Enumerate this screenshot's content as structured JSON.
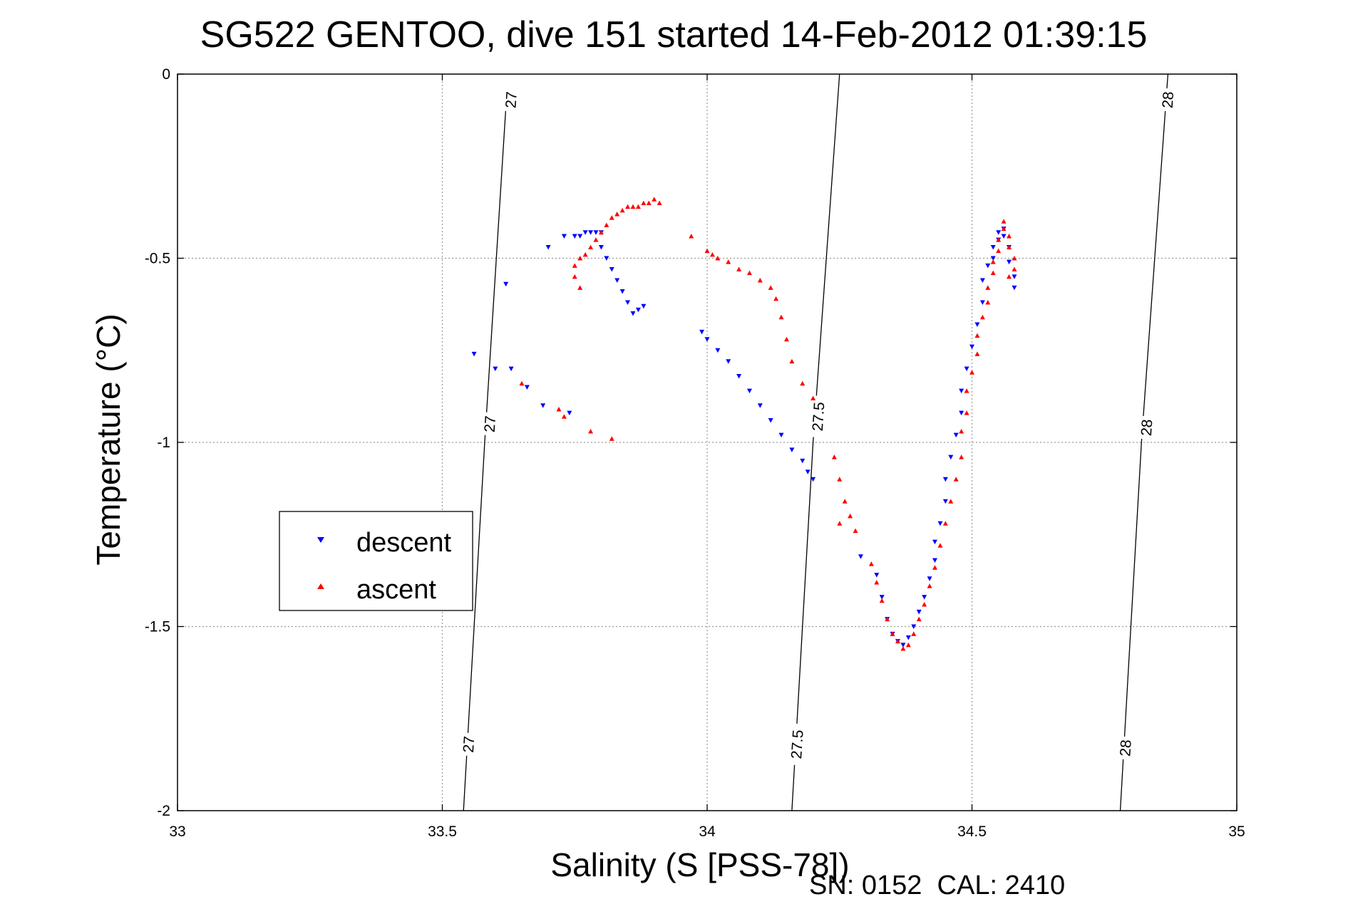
{
  "chart_data": {
    "type": "scatter",
    "title": "SG522 GENTOO, dive 151 started 14-Feb-2012 01:39:15",
    "xlabel": "Salinity (S [PSS-78])",
    "ylabel": "Temperature (°C)",
    "xlim": [
      33,
      35
    ],
    "ylim": [
      -2,
      0
    ],
    "x_ticks": [
      33,
      33.5,
      34,
      34.5,
      35
    ],
    "x_tick_labels": [
      "33",
      "33.5",
      "34",
      "34.5",
      "35"
    ],
    "y_ticks": [
      0,
      -0.5,
      -1,
      -1.5,
      -2
    ],
    "y_tick_labels": [
      "0",
      "-0.5",
      "-1",
      "-1.5",
      "-2"
    ],
    "grid": true,
    "legend_position": "lower-left",
    "density_contours": [
      {
        "label": "27",
        "points": [
          [
            33.54,
            -2
          ],
          [
            33.58,
            -1.0
          ],
          [
            33.62,
            -0.09
          ]
        ],
        "label_positions": [
          [
            33.55,
            -1.82
          ],
          [
            33.59,
            -0.95
          ],
          [
            33.63,
            -0.07
          ]
        ]
      },
      {
        "label": "27.5",
        "points": [
          [
            34.16,
            -2
          ],
          [
            34.2,
            -1.0
          ],
          [
            34.25,
            0
          ]
        ],
        "label_positions": [
          [
            34.17,
            -1.82
          ],
          [
            34.21,
            -0.93
          ]
        ]
      },
      {
        "label": "28",
        "points": [
          [
            34.78,
            -2
          ],
          [
            34.82,
            -1.0
          ],
          [
            34.87,
            0
          ]
        ],
        "label_positions": [
          [
            34.79,
            -1.83
          ],
          [
            34.83,
            -0.96
          ],
          [
            34.87,
            -0.07
          ]
        ]
      }
    ],
    "series": [
      {
        "name": "descent",
        "color": "#0000ff",
        "marker": "triangle-down",
        "points": [
          [
            33.56,
            -0.76
          ],
          [
            33.6,
            -0.8
          ],
          [
            33.62,
            -0.57
          ],
          [
            33.63,
            -0.8
          ],
          [
            33.66,
            -0.85
          ],
          [
            33.69,
            -0.9
          ],
          [
            33.7,
            -0.47
          ],
          [
            33.73,
            -0.44
          ],
          [
            33.74,
            -0.92
          ],
          [
            33.75,
            -0.44
          ],
          [
            33.76,
            -0.44
          ],
          [
            33.77,
            -0.43
          ],
          [
            33.78,
            -0.43
          ],
          [
            33.79,
            -0.43
          ],
          [
            33.8,
            -0.43
          ],
          [
            33.8,
            -0.47
          ],
          [
            33.81,
            -0.5
          ],
          [
            33.82,
            -0.53
          ],
          [
            33.83,
            -0.56
          ],
          [
            33.84,
            -0.59
          ],
          [
            33.85,
            -0.62
          ],
          [
            33.86,
            -0.65
          ],
          [
            33.87,
            -0.64
          ],
          [
            33.88,
            -0.63
          ],
          [
            33.99,
            -0.7
          ],
          [
            34.0,
            -0.72
          ],
          [
            34.02,
            -0.75
          ],
          [
            34.04,
            -0.78
          ],
          [
            34.06,
            -0.82
          ],
          [
            34.08,
            -0.86
          ],
          [
            34.1,
            -0.9
          ],
          [
            34.12,
            -0.94
          ],
          [
            34.14,
            -0.98
          ],
          [
            34.16,
            -1.02
          ],
          [
            34.18,
            -1.05
          ],
          [
            34.19,
            -1.08
          ],
          [
            34.2,
            -1.1
          ],
          [
            34.29,
            -1.31
          ],
          [
            34.32,
            -1.36
          ],
          [
            34.33,
            -1.42
          ],
          [
            34.34,
            -1.48
          ],
          [
            34.35,
            -1.52
          ],
          [
            34.36,
            -1.54
          ],
          [
            34.37,
            -1.55
          ],
          [
            34.38,
            -1.53
          ],
          [
            34.39,
            -1.5
          ],
          [
            34.4,
            -1.46
          ],
          [
            34.41,
            -1.42
          ],
          [
            34.42,
            -1.37
          ],
          [
            34.43,
            -1.32
          ],
          [
            34.43,
            -1.27
          ],
          [
            34.44,
            -1.22
          ],
          [
            34.45,
            -1.16
          ],
          [
            34.45,
            -1.1
          ],
          [
            34.46,
            -1.04
          ],
          [
            34.47,
            -0.98
          ],
          [
            34.48,
            -0.92
          ],
          [
            34.48,
            -0.86
          ],
          [
            34.49,
            -0.8
          ],
          [
            34.5,
            -0.74
          ],
          [
            34.51,
            -0.68
          ],
          [
            34.52,
            -0.62
          ],
          [
            34.52,
            -0.56
          ],
          [
            34.53,
            -0.52
          ],
          [
            34.54,
            -0.5
          ],
          [
            34.54,
            -0.47
          ],
          [
            34.55,
            -0.45
          ],
          [
            34.55,
            -0.43
          ],
          [
            34.56,
            -0.42
          ],
          [
            34.56,
            -0.44
          ],
          [
            34.57,
            -0.47
          ],
          [
            34.57,
            -0.51
          ],
          [
            34.58,
            -0.55
          ],
          [
            34.58,
            -0.58
          ]
        ]
      },
      {
        "name": "ascent",
        "color": "#ff0000",
        "marker": "triangle-up",
        "points": [
          [
            33.65,
            -0.84
          ],
          [
            33.72,
            -0.91
          ],
          [
            33.73,
            -0.93
          ],
          [
            33.78,
            -0.97
          ],
          [
            33.82,
            -0.99
          ],
          [
            33.75,
            -0.55
          ],
          [
            33.75,
            -0.52
          ],
          [
            33.76,
            -0.5
          ],
          [
            33.76,
            -0.58
          ],
          [
            33.77,
            -0.49
          ],
          [
            33.78,
            -0.47
          ],
          [
            33.79,
            -0.45
          ],
          [
            33.8,
            -0.43
          ],
          [
            33.81,
            -0.41
          ],
          [
            33.82,
            -0.39
          ],
          [
            33.83,
            -0.38
          ],
          [
            33.84,
            -0.37
          ],
          [
            33.85,
            -0.36
          ],
          [
            33.86,
            -0.36
          ],
          [
            33.87,
            -0.36
          ],
          [
            33.88,
            -0.35
          ],
          [
            33.89,
            -0.35
          ],
          [
            33.9,
            -0.34
          ],
          [
            33.91,
            -0.35
          ],
          [
            33.97,
            -0.44
          ],
          [
            34.0,
            -0.48
          ],
          [
            34.01,
            -0.49
          ],
          [
            34.02,
            -0.5
          ],
          [
            34.04,
            -0.51
          ],
          [
            34.06,
            -0.53
          ],
          [
            34.08,
            -0.54
          ],
          [
            34.1,
            -0.56
          ],
          [
            34.12,
            -0.58
          ],
          [
            34.13,
            -0.61
          ],
          [
            34.14,
            -0.66
          ],
          [
            34.15,
            -0.72
          ],
          [
            34.16,
            -0.78
          ],
          [
            34.18,
            -0.84
          ],
          [
            34.2,
            -0.88
          ],
          [
            34.24,
            -1.04
          ],
          [
            34.25,
            -1.1
          ],
          [
            34.26,
            -1.16
          ],
          [
            34.27,
            -1.2
          ],
          [
            34.28,
            -1.24
          ],
          [
            34.25,
            -1.22
          ],
          [
            34.31,
            -1.33
          ],
          [
            34.32,
            -1.38
          ],
          [
            34.33,
            -1.43
          ],
          [
            34.34,
            -1.48
          ],
          [
            34.35,
            -1.52
          ],
          [
            34.36,
            -1.54
          ],
          [
            34.37,
            -1.56
          ],
          [
            34.38,
            -1.55
          ],
          [
            34.39,
            -1.52
          ],
          [
            34.4,
            -1.48
          ],
          [
            34.41,
            -1.44
          ],
          [
            34.42,
            -1.39
          ],
          [
            34.43,
            -1.34
          ],
          [
            34.44,
            -1.28
          ],
          [
            34.45,
            -1.22
          ],
          [
            34.46,
            -1.16
          ],
          [
            34.47,
            -1.1
          ],
          [
            34.48,
            -1.04
          ],
          [
            34.48,
            -0.97
          ],
          [
            34.49,
            -0.92
          ],
          [
            34.49,
            -0.86
          ],
          [
            34.5,
            -0.81
          ],
          [
            34.51,
            -0.76
          ],
          [
            34.51,
            -0.71
          ],
          [
            34.52,
            -0.66
          ],
          [
            34.53,
            -0.62
          ],
          [
            34.53,
            -0.58
          ],
          [
            34.54,
            -0.54
          ],
          [
            34.54,
            -0.51
          ],
          [
            34.55,
            -0.48
          ],
          [
            34.55,
            -0.45
          ],
          [
            34.56,
            -0.42
          ],
          [
            34.56,
            -0.4
          ],
          [
            34.57,
            -0.44
          ],
          [
            34.57,
            -0.47
          ],
          [
            34.58,
            -0.5
          ],
          [
            34.58,
            -0.53
          ],
          [
            34.57,
            -0.55
          ]
        ]
      }
    ]
  },
  "legend": {
    "descent_label": "descent",
    "ascent_label": "ascent"
  },
  "footer": {
    "text": "SN: 0152  CAL: 2410"
  }
}
